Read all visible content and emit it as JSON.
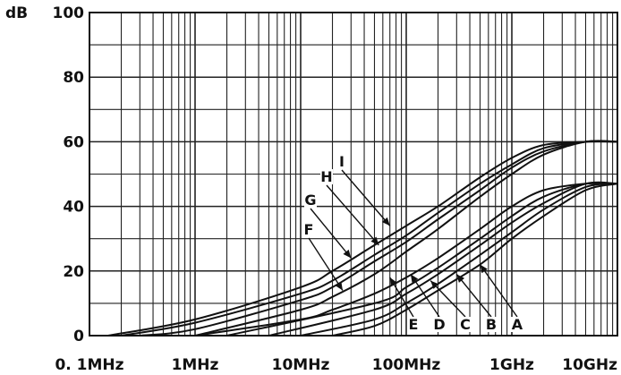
{
  "chart_data": {
    "type": "line",
    "ylabel": "dB",
    "x_scale": "log",
    "xlim": [
      "0.1MHz",
      "10GHz"
    ],
    "ylim": [
      0,
      100
    ],
    "grid": true,
    "x_tick_labels": [
      "0. 1MHz",
      "1MHz",
      "10MHz",
      "100MHz",
      "1GHz",
      "10GHz"
    ],
    "y_tick_labels": [
      "0",
      "20",
      "40",
      "60",
      "80",
      "100"
    ],
    "y_ticks": [
      0,
      20,
      40,
      60,
      80,
      100
    ],
    "series": [
      {
        "name": "A",
        "x": [
          "20MHz",
          "50MHz",
          "100MHz",
          "200MHz",
          "500MHz",
          "1GHz",
          "2GHz",
          "5GHz",
          "10GHz"
        ],
        "y": [
          0,
          3,
          8,
          14,
          22,
          30,
          37,
          45,
          47
        ]
      },
      {
        "name": "B",
        "x": [
          "10MHz",
          "50MHz",
          "100MHz",
          "200MHz",
          "500MHz",
          "1GHz",
          "2GHz",
          "5GHz",
          "10GHz"
        ],
        "y": [
          0,
          5,
          10,
          16,
          25,
          32,
          39,
          46,
          47
        ]
      },
      {
        "name": "C",
        "x": [
          "5MHz",
          "50MHz",
          "100MHz",
          "200MHz",
          "500MHz",
          "1GHz",
          "2GHz",
          "5GHz",
          "10GHz"
        ],
        "y": [
          0,
          8,
          13,
          19,
          28,
          35,
          41,
          47,
          47
        ]
      },
      {
        "name": "D",
        "x": [
          "2MHz",
          "50MHz",
          "100MHz",
          "200MHz",
          "500MHz",
          "1GHz",
          "2GHz",
          "5GHz",
          "10GHz"
        ],
        "y": [
          0,
          10,
          15,
          21,
          30,
          37,
          43,
          47,
          47
        ]
      },
      {
        "name": "E",
        "x": [
          "1MHz",
          "10MHz",
          "20MHz",
          "50MHz",
          "100MHz",
          "200MHz",
          "500MHz",
          "1GHz",
          "2GHz",
          "5GHz",
          "10GHz"
        ],
        "y": [
          0,
          5,
          8,
          13,
          18,
          24,
          33,
          40,
          45,
          47,
          47
        ]
      },
      {
        "name": "F",
        "x": [
          "1MHz",
          "10MHz",
          "20MHz",
          "50MHz",
          "100MHz",
          "200MHz",
          "500MHz",
          "1GHz",
          "2GHz",
          "5GHz",
          "10GHz"
        ],
        "y": [
          0,
          8,
          12,
          19,
          26,
          33,
          43,
          50,
          56,
          60,
          60
        ]
      },
      {
        "name": "G",
        "x": [
          "0.3MHz",
          "1MHz",
          "10MHz",
          "20MHz",
          "50MHz",
          "100MHz",
          "200MHz",
          "500MHz",
          "1GHz",
          "2GHz",
          "5GHz",
          "10GHz"
        ],
        "y": [
          0,
          2,
          11,
          15,
          23,
          29,
          36,
          45,
          52,
          57,
          60,
          60
        ]
      },
      {
        "name": "H",
        "x": [
          "0.2MHz",
          "1MHz",
          "10MHz",
          "20MHz",
          "50MHz",
          "100MHz",
          "200MHz",
          "500MHz",
          "1GHz",
          "2GHz",
          "5GHz",
          "10GHz"
        ],
        "y": [
          0,
          4,
          13,
          17,
          25,
          31,
          38,
          47,
          53,
          58,
          60,
          60
        ]
      },
      {
        "name": "I",
        "x": [
          "0.15MHz",
          "1MHz",
          "10MHz",
          "20MHz",
          "50MHz",
          "100MHz",
          "200MHz",
          "500MHz",
          "1GHz",
          "2GHz",
          "5GHz",
          "10GHz"
        ],
        "y": [
          0,
          5,
          15,
          20,
          28,
          34,
          40,
          49,
          55,
          59,
          60,
          60
        ]
      }
    ],
    "annotations": [
      {
        "label": "A",
        "x": "500MHz",
        "y": 22
      },
      {
        "label": "B",
        "x": "300MHz",
        "y": 19
      },
      {
        "label": "C",
        "x": "170MHz",
        "y": 17
      },
      {
        "label": "D",
        "x": "110MHz",
        "y": 19
      },
      {
        "label": "E",
        "x": "70MHz",
        "y": 18
      },
      {
        "label": "F",
        "x": "25MHz",
        "y": 14
      },
      {
        "label": "G",
        "x": "30MHz",
        "y": 24
      },
      {
        "label": "H",
        "x": "55MHz",
        "y": 28
      },
      {
        "label": "I",
        "x": "70MHz",
        "y": 34
      }
    ]
  }
}
